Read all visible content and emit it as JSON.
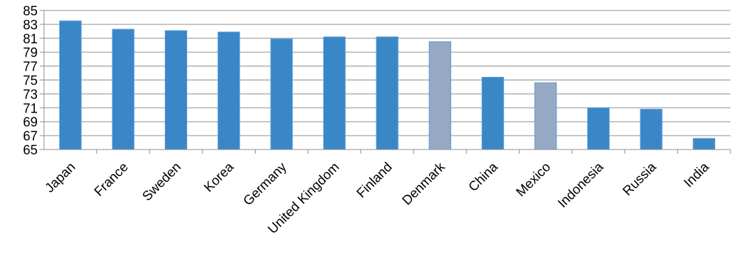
{
  "chart_data": {
    "type": "bar",
    "categories": [
      "Japan",
      "France",
      "Sweden",
      "Korea",
      "Germany",
      "United Kingdom",
      "Finland",
      "Denmark",
      "China",
      "Mexico",
      "Indonesia",
      "Russia",
      "India"
    ],
    "values": [
      83.5,
      82.3,
      82.1,
      81.9,
      80.9,
      81.2,
      81.2,
      80.5,
      75.4,
      74.6,
      71.0,
      70.8,
      66.6
    ],
    "highlighted": [
      "Denmark",
      "Mexico"
    ],
    "ylim": [
      65,
      85
    ],
    "yticks": [
      65,
      67,
      69,
      71,
      73,
      75,
      77,
      79,
      81,
      83,
      85
    ],
    "grid": true,
    "title": "",
    "xlabel": "",
    "ylabel": "",
    "colors": {
      "bar": "#3a87c8",
      "highlight": "#96a9c4"
    }
  }
}
